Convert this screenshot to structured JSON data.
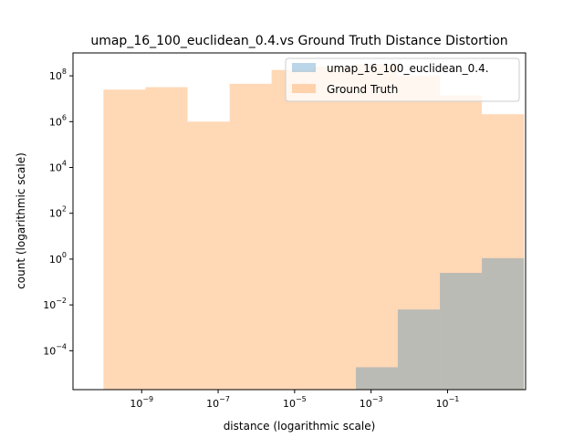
{
  "chart_data": {
    "type": "bar",
    "subtype": "histogram",
    "title": "umap_16_100_euclidean_0.4.vs Ground Truth Distance Distortion",
    "xlabel": "distance (logarithmic scale)",
    "ylabel": "count (logarithmic scale)",
    "xscale": "log",
    "yscale": "log",
    "xlim": [
      1.6e-11,
      11
    ],
    "ylim": [
      2e-06,
      1000000000.0
    ],
    "x_ticks": [
      {
        "label_base": "10",
        "label_exp": "−9",
        "value": 1e-09
      },
      {
        "label_base": "10",
        "label_exp": "−7",
        "value": 1e-07
      },
      {
        "label_base": "10",
        "label_exp": "−5",
        "value": 1e-05
      },
      {
        "label_base": "10",
        "label_exp": "−3",
        "value": 0.001
      },
      {
        "label_base": "10",
        "label_exp": "−1",
        "value": 0.1
      }
    ],
    "y_ticks": [
      {
        "label_base": "10",
        "label_exp": "−4",
        "value": 0.0001
      },
      {
        "label_base": "10",
        "label_exp": "−2",
        "value": 0.01
      },
      {
        "label_base": "10",
        "label_exp": "0",
        "value": 1
      },
      {
        "label_base": "10",
        "label_exp": "2",
        "value": 100.0
      },
      {
        "label_base": "10",
        "label_exp": "4",
        "value": 10000.0
      },
      {
        "label_base": "10",
        "label_exp": "6",
        "value": 1000000.0
      },
      {
        "label_base": "10",
        "label_exp": "8",
        "value": 100000000.0
      }
    ],
    "bin_edges": [
      1e-10,
      1.26e-09,
      1.58e-08,
      2e-07,
      2.5e-06,
      3.2e-05,
      0.0004,
      0.005,
      0.063,
      0.79,
      10
    ],
    "series": [
      {
        "name": "umap_16_100_euclidean_0.4.",
        "color": "#1f77b4",
        "alpha": 0.3,
        "values": [
          0,
          0,
          0,
          0,
          0,
          0,
          1.9e-05,
          0.0063,
          0.25,
          1.1
        ]
      },
      {
        "name": "Ground Truth",
        "color": "#ff7f0e",
        "alpha": 0.3,
        "values": [
          25000000,
          32000000,
          1000000,
          45000000,
          180000000,
          250000000,
          320000000,
          100000000,
          14000000,
          2100000
        ]
      }
    ],
    "legend": "top-right",
    "grid": false
  }
}
